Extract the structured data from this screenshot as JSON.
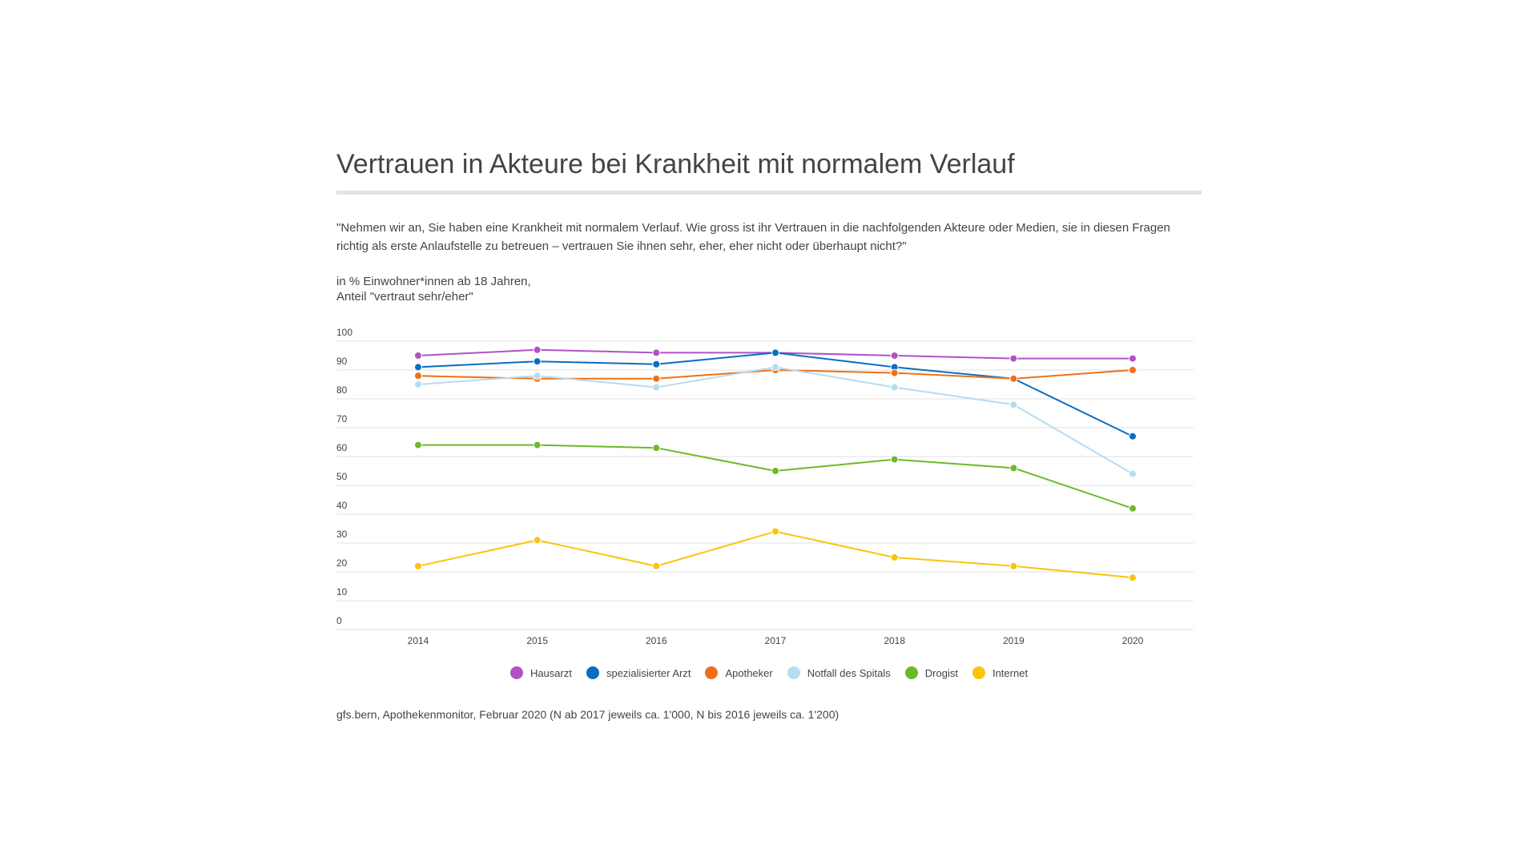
{
  "title": "Vertrauen in Akteure bei Krankheit mit normalem Verlauf",
  "question": "\"Nehmen wir an, Sie haben eine Krankheit mit normalem Verlauf. Wie gross ist ihr Vertrauen in die nachfolgenden Akteure oder Medien, sie in diesen Fragen richtig als erste Anlaufstelle zu betreuen – vertrauen Sie ihnen sehr, eher, eher nicht oder überhaupt nicht?\"",
  "subtitle_line1": "in % Einwohner*innen ab 18 Jahren,",
  "subtitle_line2": "Anteil \"vertraut sehr/eher\"",
  "source": "gfs.bern, Apothekenmonitor, Februar 2020 (N ab 2017 jeweils ca. 1'000, N bis 2016 jeweils ca. 1'200)",
  "chart_data": {
    "type": "line",
    "x": [
      "2014",
      "2015",
      "2016",
      "2017",
      "2018",
      "2019",
      "2020"
    ],
    "ylim": [
      0,
      100
    ],
    "yticks": [
      0,
      10,
      20,
      30,
      40,
      50,
      60,
      70,
      80,
      90,
      100
    ],
    "grid": true,
    "legend_position": "bottom",
    "series": [
      {
        "name": "Hausarzt",
        "color": "#b052c6",
        "values": [
          95,
          97,
          96,
          96,
          95,
          94,
          94
        ]
      },
      {
        "name": "spezialisierter Arzt",
        "color": "#0a6cc2",
        "values": [
          91,
          93,
          92,
          96,
          91,
          87,
          67
        ]
      },
      {
        "name": "Apotheker",
        "color": "#f07018",
        "values": [
          88,
          87,
          87,
          90,
          89,
          87,
          90
        ]
      },
      {
        "name": "Notfall des Spitals",
        "color": "#b5dcf0",
        "values": [
          85,
          88,
          84,
          91,
          84,
          78,
          54
        ]
      },
      {
        "name": "Drogist",
        "color": "#6cb92a",
        "values": [
          64,
          64,
          63,
          55,
          59,
          56,
          42
        ]
      },
      {
        "name": "Internet",
        "color": "#fbc30e",
        "values": [
          22,
          31,
          22,
          34,
          25,
          22,
          18
        ]
      }
    ]
  }
}
